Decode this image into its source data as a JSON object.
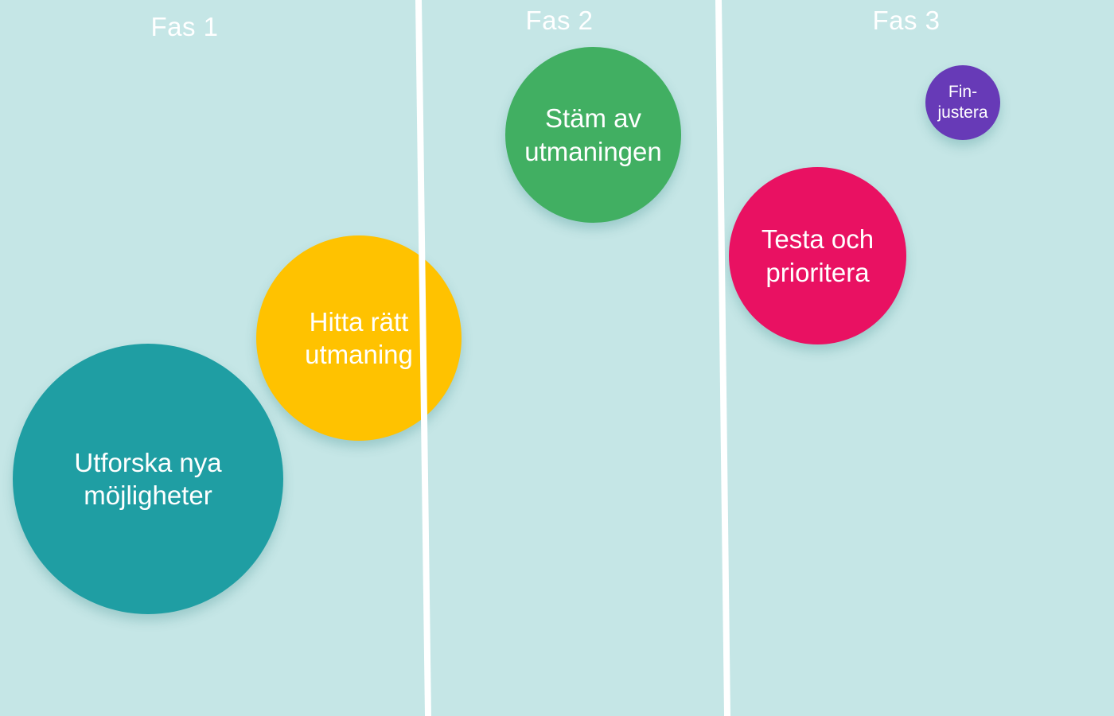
{
  "phases": [
    {
      "label": "Fas 1"
    },
    {
      "label": "Fas 2"
    },
    {
      "label": "Fas 3"
    }
  ],
  "bubbles": [
    {
      "id": "utforska",
      "line1": "Utforska nya",
      "line2": "möjligheter",
      "color": "#1f9ea3"
    },
    {
      "id": "hitta",
      "line1": "Hitta rätt",
      "line2": "utmaning",
      "color": "#ffc200"
    },
    {
      "id": "stam",
      "line1": "Stäm av",
      "line2": "utmaningen",
      "color": "#41af62"
    },
    {
      "id": "testa",
      "line1": "Testa och",
      "line2": "prioritera",
      "color": "#e91162"
    },
    {
      "id": "fin",
      "line1": "Fin-",
      "line2": "justera",
      "color": "#673ab7"
    }
  ],
  "colors": {
    "background": "#c5e6e6",
    "divider": "#ffffff",
    "text": "#ffffff"
  }
}
